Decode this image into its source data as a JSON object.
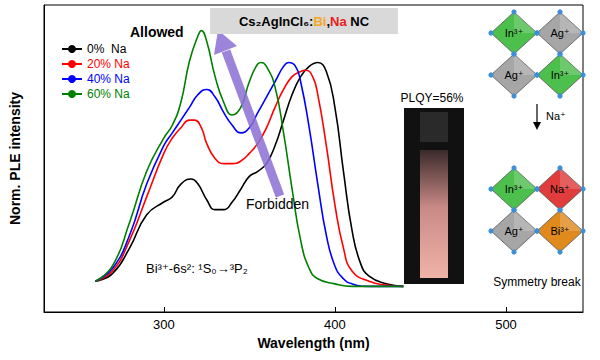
{
  "chart_data": {
    "type": "line",
    "title": [
      {
        "text": "Cs₂AgInCl₆:",
        "color": "#000000"
      },
      {
        "text": "Bi",
        "color": "#f5a623"
      },
      {
        "text": ",",
        "color": "#000000"
      },
      {
        "text": "Na",
        "color": "#e8201a"
      },
      {
        "text": " NC",
        "color": "#000000"
      }
    ],
    "x_label": "Wavelength (nm)",
    "y_label": "Norm. PLE intensity",
    "xlim": [
      230,
      545
    ],
    "xticks": [
      300,
      400,
      500
    ],
    "ylim": [
      -0.1,
      1.1
    ],
    "yticks": [],
    "tick_labels": "x",
    "grid": false,
    "legend": "upper left",
    "series": [
      {
        "name": "0%  Na",
        "color": "#000000",
        "x": [
          260,
          270,
          280,
          290,
          300,
          305,
          310,
          316,
          320,
          325,
          330,
          335,
          340,
          345,
          350,
          355,
          360,
          365,
          370,
          375,
          380,
          385,
          390,
          395,
          400,
          405,
          410,
          415,
          420,
          430,
          440
        ],
        "values": [
          0.02,
          0.05,
          0.15,
          0.28,
          0.33,
          0.35,
          0.4,
          0.42,
          0.4,
          0.34,
          0.3,
          0.3,
          0.33,
          0.38,
          0.43,
          0.45,
          0.48,
          0.55,
          0.65,
          0.75,
          0.82,
          0.86,
          0.875,
          0.84,
          0.7,
          0.45,
          0.22,
          0.09,
          0.04,
          0.01,
          0.0
        ]
      },
      {
        "name": "20% Na",
        "color": "#ff0000",
        "x": [
          260,
          270,
          280,
          290,
          300,
          305,
          310,
          315,
          318,
          322,
          325,
          330,
          335,
          340,
          345,
          350,
          355,
          360,
          365,
          370,
          375,
          380,
          383,
          387,
          390,
          395,
          400,
          405,
          410,
          420,
          430,
          440
        ],
        "values": [
          0.02,
          0.06,
          0.18,
          0.35,
          0.52,
          0.58,
          0.62,
          0.65,
          0.65,
          0.62,
          0.56,
          0.5,
          0.48,
          0.48,
          0.49,
          0.52,
          0.56,
          0.62,
          0.7,
          0.77,
          0.82,
          0.84,
          0.845,
          0.82,
          0.75,
          0.55,
          0.32,
          0.15,
          0.06,
          0.02,
          0.005,
          0.0
        ]
      },
      {
        "name": "40% Na",
        "color": "#0000ff",
        "x": [
          260,
          270,
          280,
          290,
          300,
          305,
          310,
          315,
          320,
          325,
          330,
          335,
          340,
          345,
          350,
          355,
          360,
          365,
          370,
          373,
          377,
          380,
          385,
          390,
          395,
          400,
          405,
          410,
          420,
          440
        ],
        "values": [
          0.02,
          0.07,
          0.2,
          0.4,
          0.55,
          0.6,
          0.65,
          0.7,
          0.75,
          0.77,
          0.74,
          0.68,
          0.63,
          0.6,
          0.62,
          0.68,
          0.74,
          0.8,
          0.86,
          0.875,
          0.86,
          0.8,
          0.62,
          0.4,
          0.2,
          0.08,
          0.03,
          0.01,
          0.0,
          0.0
        ]
      },
      {
        "name": "60% Na",
        "color": "#008000",
        "x": [
          260,
          270,
          280,
          290,
          300,
          305,
          310,
          315,
          320,
          322,
          325,
          330,
          335,
          340,
          345,
          350,
          355,
          357,
          360,
          365,
          370,
          375,
          380,
          385,
          390,
          400,
          410,
          440
        ],
        "values": [
          0.02,
          0.08,
          0.25,
          0.45,
          0.58,
          0.63,
          0.72,
          0.88,
          0.98,
          1.0,
          0.96,
          0.82,
          0.72,
          0.67,
          0.7,
          0.8,
          0.87,
          0.875,
          0.86,
          0.78,
          0.6,
          0.38,
          0.18,
          0.07,
          0.03,
          0.01,
          0.0,
          0.0
        ]
      }
    ],
    "annotations": [
      {
        "text": "Allowed",
        "color": "#000000"
      },
      {
        "text": "Forbidden",
        "color": "#000000"
      },
      {
        "text": "Bi³⁺-6s²: ¹S₀→³P₂",
        "color": "#000000"
      },
      {
        "text": "PLQY=56%",
        "color": "#000000"
      },
      {
        "text": "Symmetry break",
        "color": "#000000"
      }
    ],
    "lattice_before": [
      {
        "label": "In³⁺",
        "color": "#4cbf4c"
      },
      {
        "label": "Ag⁺",
        "color": "#a6a6a6"
      },
      {
        "label": "Ag⁺",
        "color": "#a6a6a6"
      },
      {
        "label": "In³⁺",
        "color": "#4cbf4c"
      }
    ],
    "lattice_arrow_label": "Na⁺",
    "lattice_after": [
      {
        "label": "In³⁺",
        "color": "#4cbf4c"
      },
      {
        "label": "Na⁺",
        "color": "#e03c3c"
      },
      {
        "label": "Ag⁺",
        "color": "#a6a6a6"
      },
      {
        "label": "Bi³⁺",
        "color": "#e08a1e"
      }
    ]
  }
}
